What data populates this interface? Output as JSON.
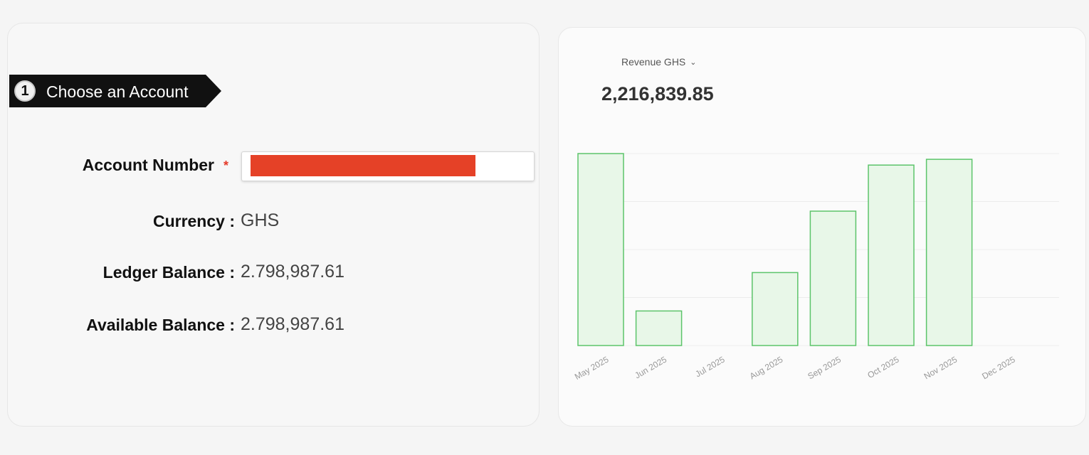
{
  "account_panel": {
    "step_number": "1",
    "step_title": "Choose an Account",
    "account_number_label": "Account Number",
    "required_mark": "*",
    "currency_label": "Currency :",
    "currency_value": "GHS",
    "ledger_label": "Ledger Balance :",
    "ledger_value": "2.798,987.61",
    "available_label": "Available Balance :",
    "available_value": "2.798,987.61"
  },
  "revenue_panel": {
    "selector_label": "Revenue GHS",
    "total": "2,216,839.85"
  },
  "colors": {
    "bar_fill": "#e8f7e8",
    "bar_stroke": "#5cc46a",
    "redaction": "#e54127",
    "banner": "#111111"
  },
  "chart_data": {
    "type": "bar",
    "categories": [
      "May 2025",
      "Jun 2025",
      "Jul 2025",
      "Aug 2025",
      "Sep 2025",
      "Oct 2025",
      "Nov 2025",
      "Dec 2025"
    ],
    "values": [
      1.0,
      0.18,
      0,
      0.38,
      0.7,
      0.94,
      0.97,
      0
    ],
    "gridlines": 4,
    "grid": true,
    "legend": "none"
  }
}
